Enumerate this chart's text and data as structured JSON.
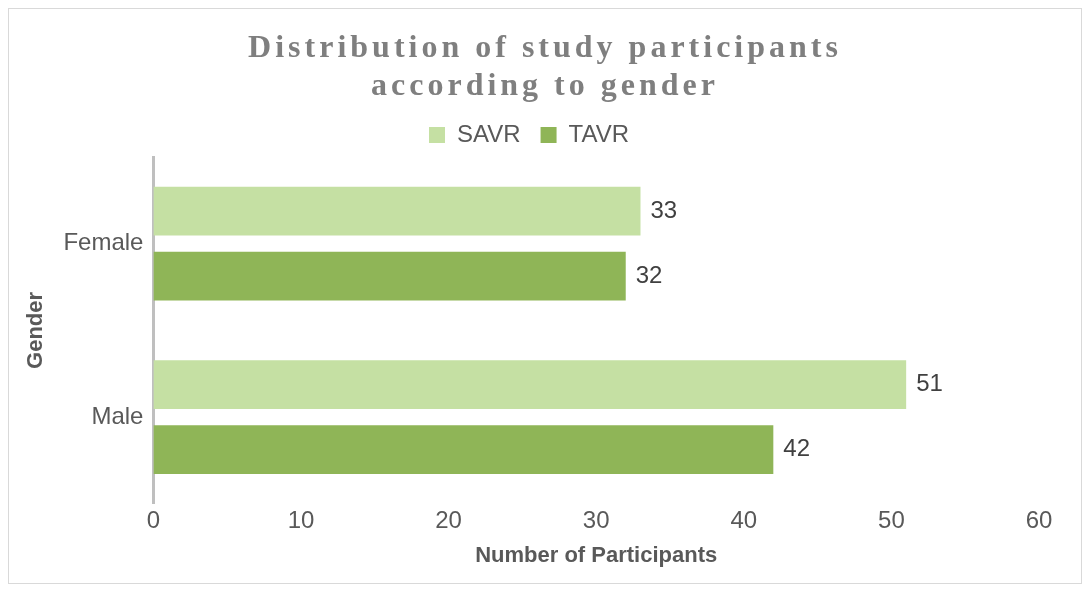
{
  "chart_data": {
    "type": "bar",
    "orientation": "horizontal",
    "title": "Distribution of study participants according to gender",
    "xlabel": "Number of Participants",
    "ylabel": "Gender",
    "categories": [
      "Female",
      "Male"
    ],
    "series": [
      {
        "name": "SAVR",
        "color": "#c5e0a3",
        "values": [
          33,
          51
        ]
      },
      {
        "name": "TAVR",
        "color": "#8fb557",
        "values": [
          32,
          42
        ]
      }
    ],
    "xlim": [
      0,
      60
    ],
    "xticks": [
      0,
      10,
      20,
      30,
      40,
      50,
      60
    ],
    "grid": false,
    "legend": "top",
    "data_labels": true
  }
}
